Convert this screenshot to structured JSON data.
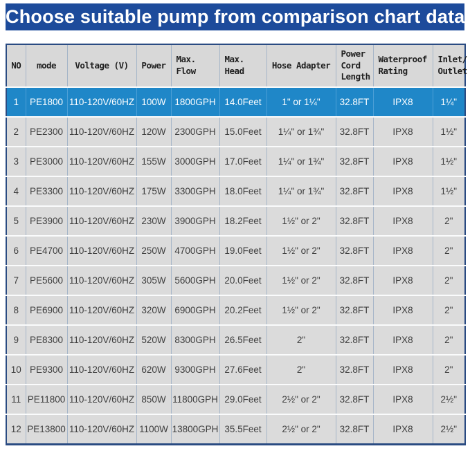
{
  "banner": {
    "title": "Choose suitable pump from comparison chart data"
  },
  "colors": {
    "banner_blue": "#1d4b9b",
    "highlight_row_blue": "#1f87c8",
    "row_gray": "#dbdbdb",
    "border_navy": "#2a4b82",
    "cell_divider_blue_gray": "#a5b5c8"
  },
  "table": {
    "columns": [
      "NO",
      "mode",
      "Voltage (V)",
      "Power",
      "Max.\nFlow",
      "Max.\nHead",
      "Hose Adapter",
      "Power\nCord\nLength",
      "Waterproof\nRating",
      "Inlet/\nOutlet"
    ],
    "rows": [
      {
        "no": "1",
        "mode": "PE1800",
        "voltage": "110-120V/60HZ",
        "power": "100W",
        "flow": "1800GPH",
        "head": "14.0Feet",
        "hose": "1\" or 1¼\"",
        "cord": "32.8FT",
        "rating": "IPX8",
        "outlet": "1¼\"",
        "highlight": true
      },
      {
        "no": "2",
        "mode": "PE2300",
        "voltage": "110-120V/60HZ",
        "power": "120W",
        "flow": "2300GPH",
        "head": "15.0Feet",
        "hose": "1¼\" or 1¾\"",
        "cord": "32.8FT",
        "rating": "IPX8",
        "outlet": "1½\"",
        "highlight": false
      },
      {
        "no": "3",
        "mode": "PE3000",
        "voltage": "110-120V/60HZ",
        "power": "155W",
        "flow": "3000GPH",
        "head": "17.0Feet",
        "hose": "1¼\" or 1¾\"",
        "cord": "32.8FT",
        "rating": "IPX8",
        "outlet": "1½\"",
        "highlight": false
      },
      {
        "no": "4",
        "mode": "PE3300",
        "voltage": "110-120V/60HZ",
        "power": "175W",
        "flow": "3300GPH",
        "head": "18.0Feet",
        "hose": "1¼\" or 1¾\"",
        "cord": "32.8FT",
        "rating": "IPX8",
        "outlet": "1½\"",
        "highlight": false
      },
      {
        "no": "5",
        "mode": "PE3900",
        "voltage": "110-120V/60HZ",
        "power": "230W",
        "flow": "3900GPH",
        "head": "18.2Feet",
        "hose": "1½\" or 2\"",
        "cord": "32.8FT",
        "rating": "IPX8",
        "outlet": "2\"",
        "highlight": false
      },
      {
        "no": "6",
        "mode": "PE4700",
        "voltage": "110-120V/60HZ",
        "power": "250W",
        "flow": "4700GPH",
        "head": "19.0Feet",
        "hose": "1½\" or 2\"",
        "cord": "32.8FT",
        "rating": "IPX8",
        "outlet": "2\"",
        "highlight": false
      },
      {
        "no": "7",
        "mode": "PE5600",
        "voltage": "110-120V/60HZ",
        "power": "305W",
        "flow": "5600GPH",
        "head": "20.0Feet",
        "hose": "1½\" or 2\"",
        "cord": "32.8FT",
        "rating": "IPX8",
        "outlet": "2\"",
        "highlight": false
      },
      {
        "no": "8",
        "mode": "PE6900",
        "voltage": "110-120V/60HZ",
        "power": "320W",
        "flow": "6900GPH",
        "head": "20.2Feet",
        "hose": "1½\" or 2\"",
        "cord": "32.8FT",
        "rating": "IPX8",
        "outlet": "2\"",
        "highlight": false
      },
      {
        "no": "9",
        "mode": "PE8300",
        "voltage": "110-120V/60HZ",
        "power": "520W",
        "flow": "8300GPH",
        "head": "26.5Feet",
        "hose": "2\"",
        "cord": "32.8FT",
        "rating": "IPX8",
        "outlet": "2\"",
        "highlight": false
      },
      {
        "no": "10",
        "mode": "PE9300",
        "voltage": "110-120V/60HZ",
        "power": "620W",
        "flow": "9300GPH",
        "head": "27.6Feet",
        "hose": "2\"",
        "cord": "32.8FT",
        "rating": "IPX8",
        "outlet": "2\"",
        "highlight": false
      },
      {
        "no": "11",
        "mode": "PE11800",
        "voltage": "110-120V/60HZ",
        "power": "850W",
        "flow": "11800GPH",
        "head": "29.0Feet",
        "hose": "2½\" or 2\"",
        "cord": "32.8FT",
        "rating": "IPX8",
        "outlet": "2½\"",
        "highlight": false
      },
      {
        "no": "12",
        "mode": "PE13800",
        "voltage": "110-120V/60HZ",
        "power": "1100W",
        "flow": "13800GPH",
        "head": "35.5Feet",
        "hose": "2½\" or 2\"",
        "cord": "32.8FT",
        "rating": "IPX8",
        "outlet": "2½\"",
        "highlight": false
      }
    ]
  },
  "chart_data": {
    "type": "table",
    "title": "Choose suitable pump from comparison chart data",
    "columns": [
      "NO",
      "mode",
      "Voltage (V)",
      "Power",
      "Max. Flow",
      "Max. Head",
      "Hose Adapter",
      "Power Cord Length",
      "Waterproof Rating",
      "Inlet/Outlet"
    ],
    "rows": [
      [
        "1",
        "PE1800",
        "110-120V/60HZ",
        "100W",
        "1800GPH",
        "14.0Feet",
        "1\" or 1¼\"",
        "32.8FT",
        "IPX8",
        "1¼\""
      ],
      [
        "2",
        "PE2300",
        "110-120V/60HZ",
        "120W",
        "2300GPH",
        "15.0Feet",
        "1¼\" or 1¾\"",
        "32.8FT",
        "IPX8",
        "1½\""
      ],
      [
        "3",
        "PE3000",
        "110-120V/60HZ",
        "155W",
        "3000GPH",
        "17.0Feet",
        "1¼\" or 1¾\"",
        "32.8FT",
        "IPX8",
        "1½\""
      ],
      [
        "4",
        "PE3300",
        "110-120V/60HZ",
        "175W",
        "3300GPH",
        "18.0Feet",
        "1¼\" or 1¾\"",
        "32.8FT",
        "IPX8",
        "1½\""
      ],
      [
        "5",
        "PE3900",
        "110-120V/60HZ",
        "230W",
        "3900GPH",
        "18.2Feet",
        "1½\" or 2\"",
        "32.8FT",
        "IPX8",
        "2\""
      ],
      [
        "6",
        "PE4700",
        "110-120V/60HZ",
        "250W",
        "4700GPH",
        "19.0Feet",
        "1½\" or 2\"",
        "32.8FT",
        "IPX8",
        "2\""
      ],
      [
        "7",
        "PE5600",
        "110-120V/60HZ",
        "305W",
        "5600GPH",
        "20.0Feet",
        "1½\" or 2\"",
        "32.8FT",
        "IPX8",
        "2\""
      ],
      [
        "8",
        "PE6900",
        "110-120V/60HZ",
        "320W",
        "6900GPH",
        "20.2Feet",
        "1½\" or 2\"",
        "32.8FT",
        "IPX8",
        "2\""
      ],
      [
        "9",
        "PE8300",
        "110-120V/60HZ",
        "520W",
        "8300GPH",
        "26.5Feet",
        "2\"",
        "32.8FT",
        "IPX8",
        "2\""
      ],
      [
        "10",
        "PE9300",
        "110-120V/60HZ",
        "620W",
        "9300GPH",
        "27.6Feet",
        "2\"",
        "32.8FT",
        "IPX8",
        "2\""
      ],
      [
        "11",
        "PE11800",
        "110-120V/60HZ",
        "850W",
        "11800GPH",
        "29.0Feet",
        "2½\" or 2\"",
        "32.8FT",
        "IPX8",
        "2½\""
      ],
      [
        "12",
        "PE13800",
        "110-120V/60HZ",
        "1100W",
        "13800GPH",
        "35.5Feet",
        "2½\" or 2\"",
        "32.8FT",
        "IPX8",
        "2½\""
      ]
    ],
    "highlighted_row_index": 0,
    "notes": "Row 1 (PE1800) is highlighted in blue"
  }
}
